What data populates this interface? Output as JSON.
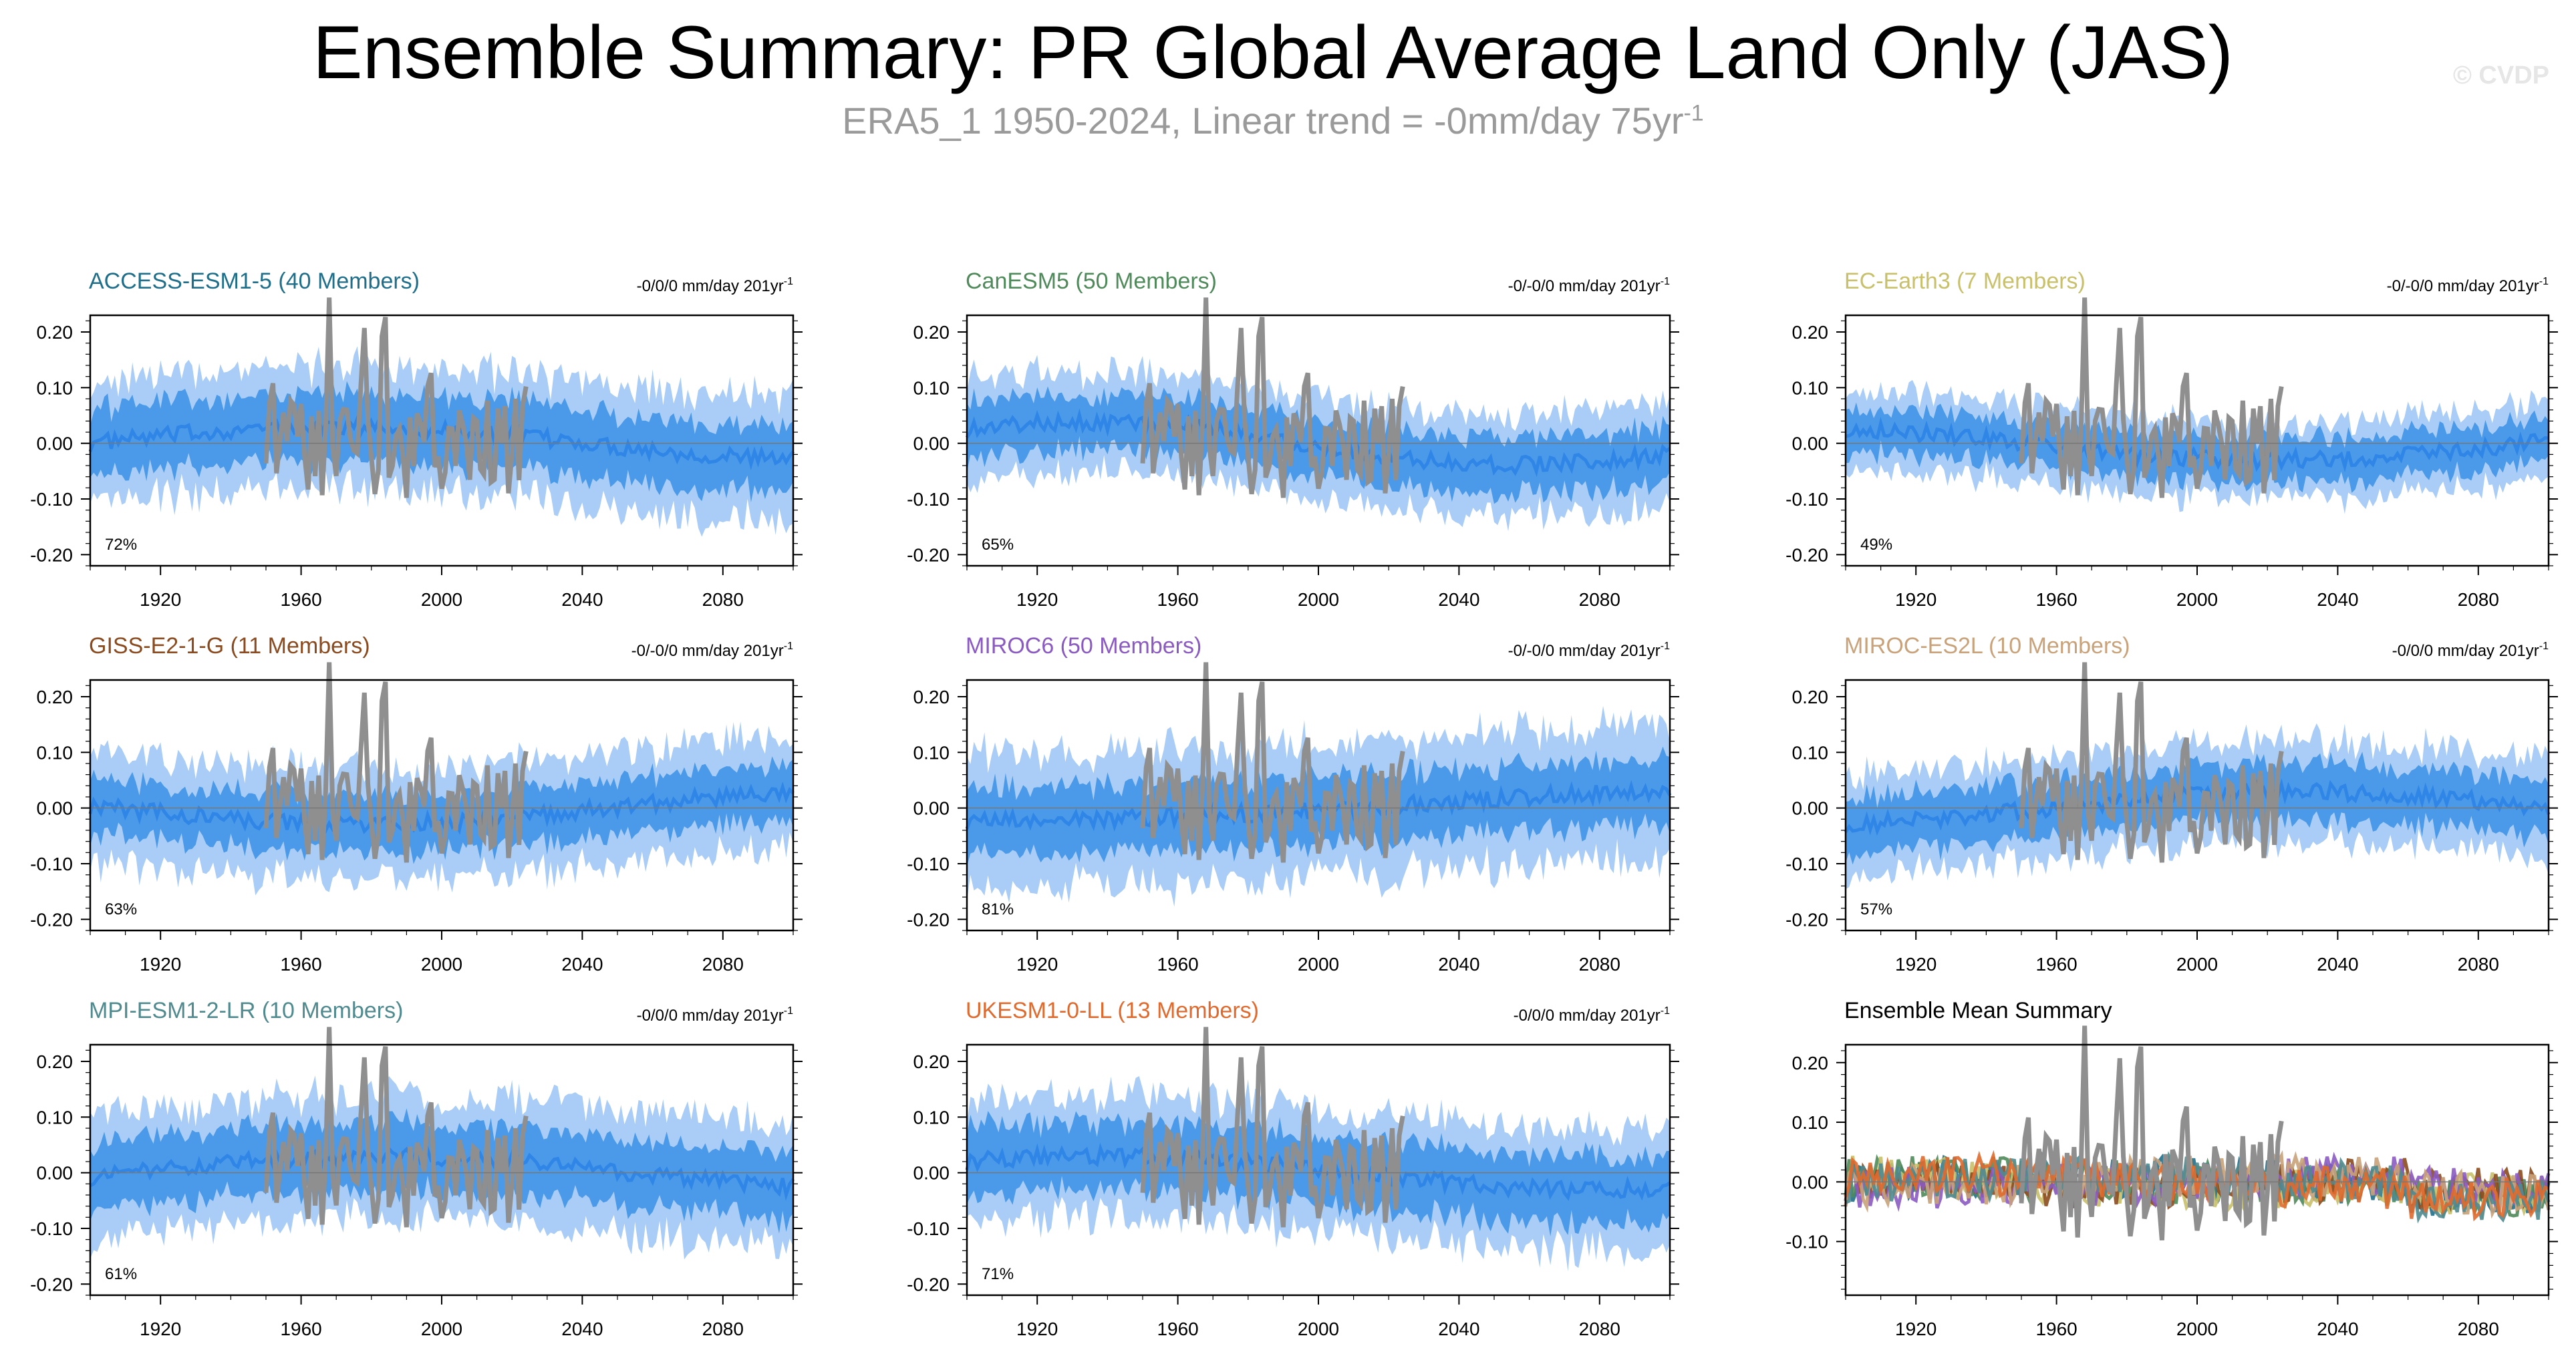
{
  "title": "Ensemble Summary: PR Global Average Land Only (JAS)",
  "subtitle_text": "ERA5_1 1950-2024, Linear trend = -0mm/day 75yr",
  "subtitle_sup": "-1",
  "credit": "© CVDP",
  "colors": {
    "band_outer": "#a9cdf6",
    "band_inner": "#4a9ae9",
    "mean": "#2f86e6",
    "obs": "#8f8f8f"
  },
  "chart_data": [
    {
      "type": "area",
      "title": "ACCESS-ESM1-5 (40 Members)",
      "title_color": "#1f6f8b",
      "trend": "-0/0/0 mm/day 201yr",
      "trend_sup": "-1",
      "pct": "72%",
      "ylim": [
        -0.22,
        0.23
      ],
      "yticks": [
        0.2,
        0.1,
        0.0,
        -0.1,
        -0.2
      ],
      "ytick_labels": [
        "0.20",
        "0.10",
        "0.00",
        "-0.10",
        "-0.20"
      ],
      "xlim": [
        1900,
        2100
      ],
      "xticks": [
        1920,
        1960,
        2000,
        2040,
        2080
      ],
      "xtick_labels": [
        "1920",
        "1960",
        "2000",
        "2040",
        "2080"
      ],
      "band_outer": 0.11,
      "band_inner": 0.06,
      "mean_offset": 0.0
    },
    {
      "type": "area",
      "title": "CanESM5 (50 Members)",
      "title_color": "#4f8a5a",
      "trend": "-0/-0/0 mm/day 201yr",
      "trend_sup": "-1",
      "pct": "65%",
      "ylim": [
        -0.22,
        0.23
      ],
      "yticks": [
        0.2,
        0.1,
        0.0,
        -0.1,
        -0.2
      ],
      "ytick_labels": [
        "0.20",
        "0.10",
        "0.00",
        "-0.10",
        "-0.20"
      ],
      "xlim": [
        1900,
        2100
      ],
      "xticks": [
        1920,
        1960,
        2000,
        2040,
        2080
      ],
      "xtick_labels": [
        "1920",
        "1960",
        "2000",
        "2040",
        "2080"
      ],
      "band_outer": 0.09,
      "band_inner": 0.05,
      "mean_offset": 0.01
    },
    {
      "type": "area",
      "title": "EC-Earth3 (7 Members)",
      "title_color": "#c8c06a",
      "trend": "-0/-0/0 mm/day 201yr",
      "trend_sup": "-1",
      "pct": "49%",
      "ylim": [
        -0.22,
        0.23
      ],
      "yticks": [
        0.2,
        0.1,
        0.0,
        -0.1,
        -0.2
      ],
      "ytick_labels": [
        "0.20",
        "0.10",
        "0.00",
        "-0.10",
        "-0.20"
      ],
      "xlim": [
        1900,
        2100
      ],
      "xticks": [
        1920,
        1960,
        2000,
        2040,
        2080
      ],
      "xtick_labels": [
        "1920",
        "1960",
        "2000",
        "2040",
        "2080"
      ],
      "band_outer": 0.07,
      "band_inner": 0.04,
      "mean_offset": 0.0
    },
    {
      "type": "area",
      "title": "GISS-E2-1-G (11 Members)",
      "title_color": "#8b4a1e",
      "trend": "-0/-0/0 mm/day 201yr",
      "trend_sup": "-1",
      "pct": "63%",
      "ylim": [
        -0.22,
        0.23
      ],
      "yticks": [
        0.2,
        0.1,
        0.0,
        -0.1,
        -0.2
      ],
      "ytick_labels": [
        "0.20",
        "0.10",
        "0.00",
        "-0.10",
        "-0.20"
      ],
      "xlim": [
        1900,
        2100
      ],
      "xticks": [
        1920,
        1960,
        2000,
        2040,
        2080
      ],
      "xtick_labels": [
        "1920",
        "1960",
        "2000",
        "2040",
        "2080"
      ],
      "band_outer": 0.1,
      "band_inner": 0.05,
      "mean_offset": 0.0
    },
    {
      "type": "area",
      "title": "MIROC6 (50 Members)",
      "title_color": "#8a5ac2",
      "trend": "-0/-0/0 mm/day 201yr",
      "trend_sup": "-1",
      "pct": "81%",
      "ylim": [
        -0.22,
        0.23
      ],
      "yticks": [
        0.2,
        0.1,
        0.0,
        -0.1,
        -0.2
      ],
      "ytick_labels": [
        "0.20",
        "0.10",
        "0.00",
        "-0.10",
        "-0.20"
      ],
      "xlim": [
        1900,
        2100
      ],
      "xticks": [
        1920,
        1960,
        2000,
        2040,
        2080
      ],
      "xtick_labels": [
        "1920",
        "1960",
        "2000",
        "2040",
        "2080"
      ],
      "band_outer": 0.12,
      "band_inner": 0.06,
      "mean_offset": 0.01
    },
    {
      "type": "area",
      "title": "MIROC-ES2L (10 Members)",
      "title_color": "#c9a27a",
      "trend": "-0/0/0 mm/day 201yr",
      "trend_sup": "-1",
      "pct": "57%",
      "ylim": [
        -0.22,
        0.23
      ],
      "yticks": [
        0.2,
        0.1,
        0.0,
        -0.1,
        -0.2
      ],
      "ytick_labels": [
        "0.20",
        "0.10",
        "0.00",
        "-0.10",
        "-0.20"
      ],
      "xlim": [
        1900,
        2100
      ],
      "xticks": [
        1920,
        1960,
        2000,
        2040,
        2080
      ],
      "xtick_labels": [
        "1920",
        "1960",
        "2000",
        "2040",
        "2080"
      ],
      "band_outer": 0.09,
      "band_inner": 0.05,
      "mean_offset": 0.0
    },
    {
      "type": "area",
      "title": "MPI-ESM1-2-LR (10 Members)",
      "title_color": "#4f8a8f",
      "trend": "-0/0/0 mm/day 201yr",
      "trend_sup": "-1",
      "pct": "61%",
      "ylim": [
        -0.22,
        0.23
      ],
      "yticks": [
        0.2,
        0.1,
        0.0,
        -0.1,
        -0.2
      ],
      "ytick_labels": [
        "0.20",
        "0.10",
        "0.00",
        "-0.10",
        "-0.20"
      ],
      "xlim": [
        1900,
        2100
      ],
      "xticks": [
        1920,
        1960,
        2000,
        2040,
        2080
      ],
      "xtick_labels": [
        "1920",
        "1960",
        "2000",
        "2040",
        "2080"
      ],
      "band_outer": 0.11,
      "band_inner": 0.06,
      "mean_offset": 0.0
    },
    {
      "type": "area",
      "title": "UKESM1-0-LL (13 Members)",
      "title_color": "#e06a2e",
      "trend": "-0/0/0 mm/day 201yr",
      "trend_sup": "-1",
      "pct": "71%",
      "ylim": [
        -0.22,
        0.23
      ],
      "yticks": [
        0.2,
        0.1,
        0.0,
        -0.1,
        -0.2
      ],
      "ytick_labels": [
        "0.20",
        "0.10",
        "0.00",
        "-0.10",
        "-0.20"
      ],
      "xlim": [
        1900,
        2100
      ],
      "xticks": [
        1920,
        1960,
        2000,
        2040,
        2080
      ],
      "xtick_labels": [
        "1920",
        "1960",
        "2000",
        "2040",
        "2080"
      ],
      "band_outer": 0.11,
      "band_inner": 0.06,
      "mean_offset": 0.0
    },
    {
      "type": "line",
      "title": "Ensemble Mean Summary",
      "title_color": "#000000",
      "trend": "",
      "trend_sup": "",
      "pct": "",
      "ylim": [
        -0.19,
        0.23
      ],
      "yticks": [
        0.2,
        0.1,
        0.0,
        -0.1
      ],
      "ytick_labels": [
        "0.20",
        "0.10",
        "0.00",
        "-0.10"
      ],
      "xlim": [
        1900,
        2100
      ],
      "xticks": [
        1920,
        1960,
        2000,
        2040,
        2080
      ],
      "xtick_labels": [
        "1920",
        "1960",
        "2000",
        "2040",
        "2080"
      ],
      "series_colors": [
        "#1f6f8b",
        "#4f8a5a",
        "#c8c06a",
        "#8b4a1e",
        "#8a5ac2",
        "#c9a27a",
        "#4f8a8f",
        "#e06a2e"
      ]
    }
  ]
}
